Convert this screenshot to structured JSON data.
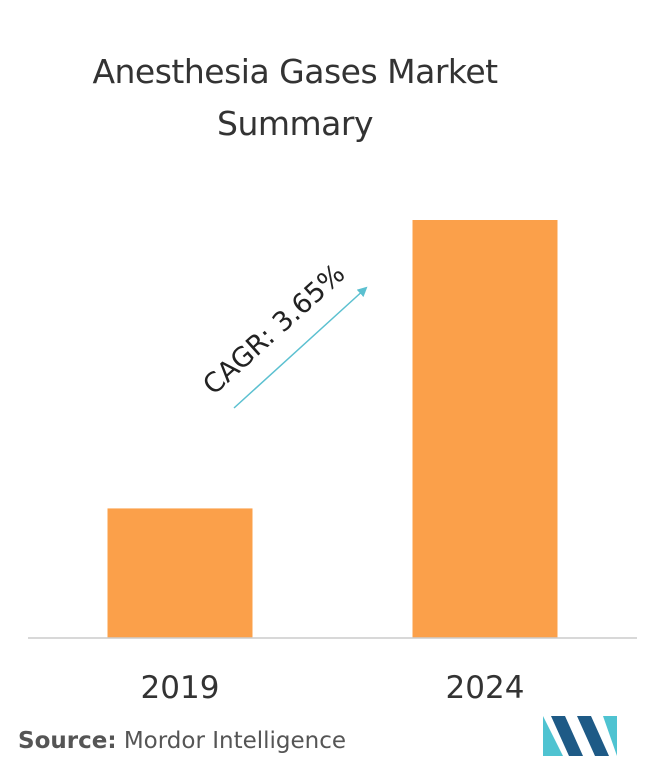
{
  "title_line1": "Anesthesia Gases Market",
  "title_line2": "Summary",
  "source": {
    "label": "Source:",
    "text": "Mordor Intelligence"
  },
  "colors": {
    "bar": "#FBA04A",
    "arrow": "#5BC0D0",
    "axis": "#CCCCCC",
    "text": "#333333",
    "logo_dark": "#1E5A86",
    "logo_light": "#4FC3D1"
  },
  "chart_data": {
    "type": "bar",
    "categories": [
      "2019",
      "2024"
    ],
    "values": [
      31,
      100
    ],
    "title": "Anesthesia Gases Market Summary",
    "xlabel": "",
    "ylabel": "",
    "ylim": [
      0,
      100
    ],
    "grid": false,
    "annotations": [
      {
        "text": "CAGR: 3.65%"
      }
    ]
  }
}
